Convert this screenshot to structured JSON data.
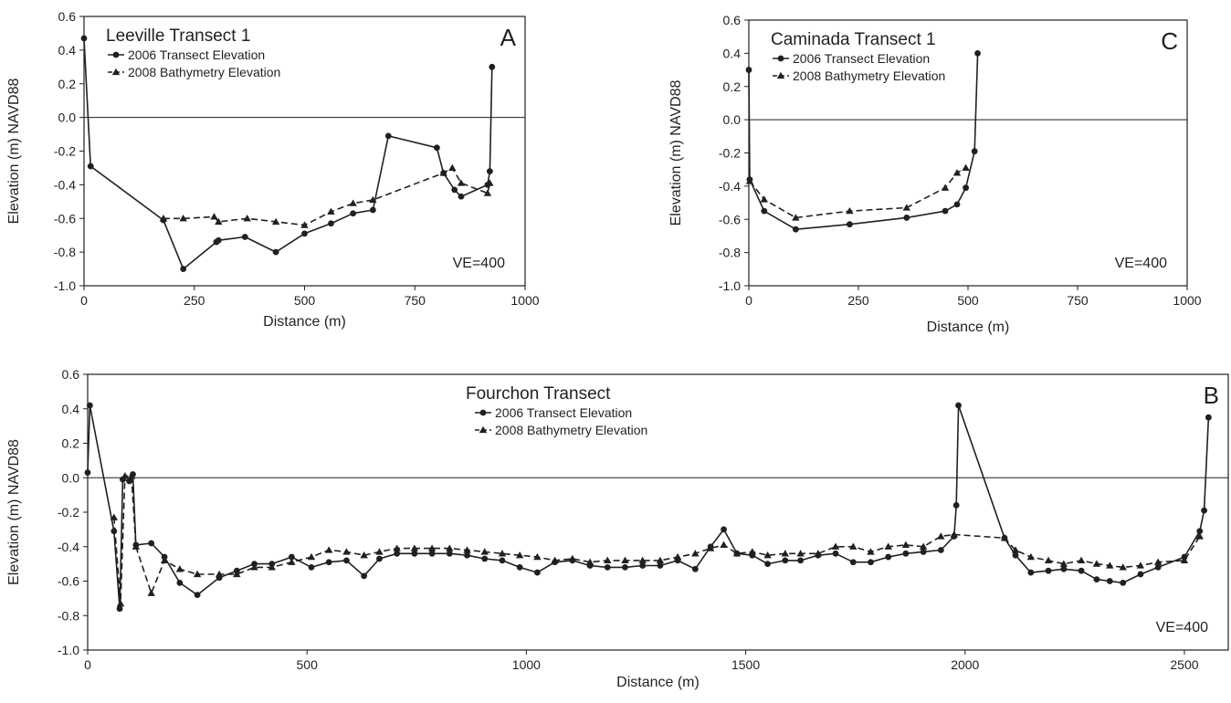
{
  "chart_data": [
    {
      "id": "A",
      "type": "line",
      "title": "Leeville Transect 1",
      "panel_label": "A",
      "annotation": "VE=400",
      "xlabel": "Distance (m)",
      "ylabel": "Elevation (m) NAVD88",
      "xlim": [
        0,
        1000
      ],
      "ylim": [
        -1.0,
        0.6
      ],
      "xticks": [
        "0",
        "250",
        "500",
        "750",
        "1000"
      ],
      "yticks": [
        "-1.0",
        "-0.8",
        "-0.6",
        "-0.4",
        "-0.2",
        "0.0",
        "0.2",
        "0.4",
        "0.6"
      ],
      "zero_line": true,
      "legend_position": "top-left",
      "series": [
        {
          "name": "2006 Transect Elevation",
          "marker": "circle",
          "line": "solid",
          "x": [
            0,
            15,
            180,
            225,
            300,
            305,
            365,
            435,
            500,
            560,
            610,
            655,
            690,
            800,
            815,
            840,
            855,
            915,
            920,
            925
          ],
          "y": [
            0.47,
            -0.29,
            -0.61,
            -0.9,
            -0.74,
            -0.73,
            -0.71,
            -0.8,
            -0.69,
            -0.63,
            -0.57,
            -0.55,
            -0.11,
            -0.18,
            -0.33,
            -0.43,
            -0.47,
            -0.4,
            -0.32,
            0.3
          ]
        },
        {
          "name": "2008 Bathymetry Elevation",
          "marker": "triangle",
          "line": "dashed",
          "x": [
            180,
            225,
            295,
            305,
            370,
            435,
            500,
            560,
            610,
            655,
            815,
            835,
            855,
            915,
            920
          ],
          "y": [
            -0.6,
            -0.6,
            -0.59,
            -0.62,
            -0.6,
            -0.62,
            -0.64,
            -0.56,
            -0.51,
            -0.49,
            -0.33,
            -0.3,
            -0.39,
            -0.45,
            -0.39
          ]
        }
      ]
    },
    {
      "id": "C",
      "type": "line",
      "title": "Caminada Transect 1",
      "panel_label": "C",
      "annotation": "VE=400",
      "xlabel": "Distance (m)",
      "ylabel": "Elevation (m) NAVD88",
      "xlim": [
        0,
        1000
      ],
      "ylim": [
        -1.0,
        0.6
      ],
      "xticks": [
        "0",
        "250",
        "500",
        "750",
        "1000"
      ],
      "yticks": [
        "-1.0",
        "-0.8",
        "-0.6",
        "-0.4",
        "-0.2",
        "0.0",
        "0.2",
        "0.4",
        "0.6"
      ],
      "zero_line": true,
      "legend_position": "top-left",
      "series": [
        {
          "name": "2006 Transect Elevation",
          "marker": "circle",
          "line": "solid",
          "x": [
            0,
            2,
            35,
            107,
            230,
            360,
            448,
            475,
            495,
            515,
            522
          ],
          "y": [
            0.3,
            -0.36,
            -0.55,
            -0.66,
            -0.63,
            -0.59,
            -0.55,
            -0.51,
            -0.41,
            -0.19,
            0.4
          ]
        },
        {
          "name": "2008 Bathymetry Elevation",
          "marker": "triangle",
          "line": "dashed",
          "x": [
            2,
            35,
            107,
            230,
            360,
            448,
            475,
            495
          ],
          "y": [
            -0.37,
            -0.48,
            -0.59,
            -0.55,
            -0.53,
            -0.41,
            -0.32,
            -0.29
          ]
        }
      ]
    },
    {
      "id": "B",
      "type": "line",
      "title": "Fourchon Transect",
      "panel_label": "B",
      "annotation": "VE=400",
      "xlabel": "Distance (m)",
      "ylabel": "Elevation (m) NAVD88",
      "xlim": [
        0,
        2600
      ],
      "ylim": [
        -1.0,
        0.6
      ],
      "xticks": [
        "0",
        "500",
        "1000",
        "1500",
        "2000",
        "2500"
      ],
      "yticks": [
        "-1.0",
        "-0.8",
        "-0.6",
        "-0.4",
        "-0.2",
        "0.0",
        "0.2",
        "0.4",
        "0.6"
      ],
      "zero_line": true,
      "legend_position": "top-center",
      "series": [
        {
          "name": "2006 Transect Elevation",
          "marker": "circle",
          "line": "solid",
          "x": [
            0,
            5,
            60,
            73,
            80,
            95,
            103,
            110,
            145,
            175,
            210,
            250,
            300,
            340,
            380,
            420,
            465,
            510,
            550,
            590,
            630,
            665,
            705,
            745,
            785,
            825,
            865,
            905,
            945,
            985,
            1025,
            1065,
            1105,
            1145,
            1185,
            1225,
            1265,
            1305,
            1345,
            1385,
            1420,
            1450,
            1480,
            1515,
            1550,
            1590,
            1625,
            1665,
            1705,
            1745,
            1785,
            1825,
            1865,
            1905,
            1945,
            1975,
            1980,
            1985,
            2090,
            2115,
            2150,
            2190,
            2225,
            2265,
            2300,
            2330,
            2360,
            2400,
            2440,
            2500,
            2535,
            2545,
            2555
          ],
          "y": [
            0.03,
            0.42,
            -0.31,
            -0.76,
            -0.01,
            -0.02,
            0.02,
            -0.39,
            -0.38,
            -0.46,
            -0.61,
            -0.68,
            -0.58,
            -0.54,
            -0.5,
            -0.5,
            -0.46,
            -0.52,
            -0.49,
            -0.48,
            -0.57,
            -0.47,
            -0.44,
            -0.44,
            -0.44,
            -0.44,
            -0.45,
            -0.47,
            -0.48,
            -0.52,
            -0.55,
            -0.49,
            -0.48,
            -0.51,
            -0.52,
            -0.52,
            -0.51,
            -0.51,
            -0.48,
            -0.53,
            -0.4,
            -0.3,
            -0.44,
            -0.45,
            -0.5,
            -0.48,
            -0.48,
            -0.45,
            -0.44,
            -0.49,
            -0.49,
            -0.46,
            -0.44,
            -0.43,
            -0.42,
            -0.34,
            -0.16,
            0.42,
            -0.35,
            -0.45,
            -0.55,
            -0.54,
            -0.53,
            -0.54,
            -0.59,
            -0.6,
            -0.61,
            -0.56,
            -0.52,
            -0.46,
            -0.31,
            -0.19,
            0.35
          ]
        },
        {
          "name": "2008 Bathymetry Elevation",
          "marker": "triangle",
          "line": "dashed",
          "x": [
            60,
            75,
            85,
            100,
            110,
            145,
            175,
            210,
            250,
            300,
            340,
            380,
            420,
            465,
            510,
            550,
            590,
            630,
            665,
            705,
            745,
            785,
            825,
            865,
            905,
            945,
            985,
            1025,
            1065,
            1105,
            1145,
            1185,
            1225,
            1265,
            1305,
            1345,
            1385,
            1420,
            1450,
            1480,
            1515,
            1550,
            1590,
            1625,
            1665,
            1705,
            1745,
            1785,
            1825,
            1865,
            1905,
            1945,
            1975,
            2090,
            2115,
            2150,
            2190,
            2225,
            2265,
            2300,
            2330,
            2360,
            2400,
            2440,
            2500,
            2535
          ],
          "y": [
            -0.23,
            -0.73,
            0.01,
            0.01,
            -0.4,
            -0.67,
            -0.48,
            -0.53,
            -0.56,
            -0.56,
            -0.56,
            -0.52,
            -0.52,
            -0.49,
            -0.46,
            -0.42,
            -0.43,
            -0.45,
            -0.43,
            -0.41,
            -0.41,
            -0.41,
            -0.41,
            -0.42,
            -0.43,
            -0.44,
            -0.45,
            -0.46,
            -0.48,
            -0.47,
            -0.49,
            -0.48,
            -0.48,
            -0.48,
            -0.48,
            -0.46,
            -0.44,
            -0.41,
            -0.39,
            -0.44,
            -0.43,
            -0.45,
            -0.44,
            -0.44,
            -0.44,
            -0.4,
            -0.4,
            -0.43,
            -0.4,
            -0.39,
            -0.4,
            -0.34,
            -0.33,
            -0.35,
            -0.42,
            -0.46,
            -0.48,
            -0.5,
            -0.48,
            -0.5,
            -0.51,
            -0.52,
            -0.51,
            -0.49,
            -0.48,
            -0.34
          ]
        }
      ]
    }
  ]
}
